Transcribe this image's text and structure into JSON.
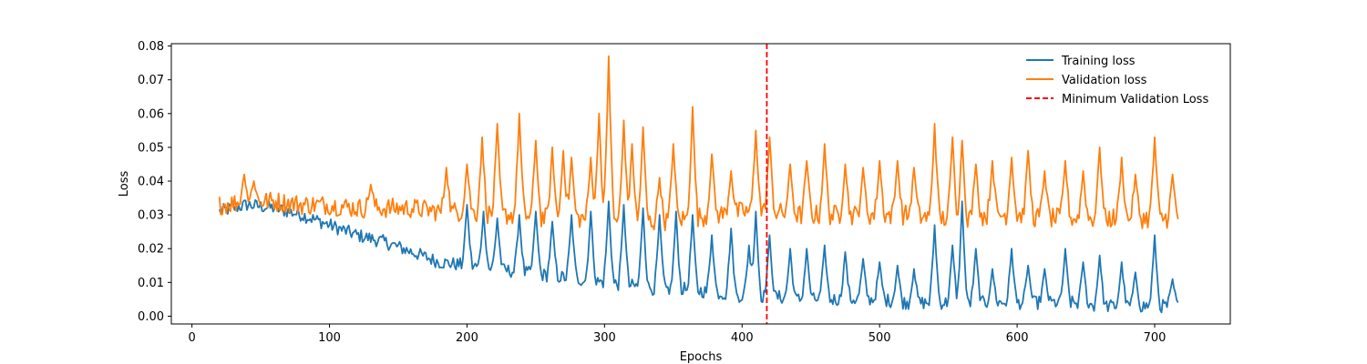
{
  "chart_data": {
    "type": "line",
    "title": "",
    "xlabel": "Epochs",
    "ylabel": "Loss",
    "xlim": [
      -15,
      755
    ],
    "ylim": [
      -0.0023,
      0.0807
    ],
    "xticks": [
      0,
      100,
      200,
      300,
      400,
      500,
      600,
      700
    ],
    "xtick_labels": [
      "0",
      "100",
      "200",
      "300",
      "400",
      "500",
      "600",
      "700"
    ],
    "yticks": [
      0.0,
      0.01,
      0.02,
      0.03,
      0.04,
      0.05,
      0.06,
      0.07,
      0.08
    ],
    "ytick_labels": [
      "0.00",
      "0.01",
      "0.02",
      "0.03",
      "0.04",
      "0.05",
      "0.06",
      "0.07",
      "0.08"
    ],
    "grid": false,
    "legend_position": "top-right",
    "series": [
      {
        "name": "Training loss",
        "color": "#1f77b4",
        "x_start": 20,
        "x_step": 20,
        "y": [
          0.031,
          0.033,
          0.032,
          0.03,
          0.027,
          0.024,
          0.022,
          0.019,
          0.016,
          0.015,
          0.014,
          0.013,
          0.012,
          0.011,
          0.01,
          0.009,
          0.008,
          0.008,
          0.007,
          0.006,
          0.006,
          0.005,
          0.005,
          0.005,
          0.005,
          0.004,
          0.004,
          0.004,
          0.004,
          0.004,
          0.004,
          0.004,
          0.003,
          0.003,
          0.003,
          0.003
        ],
        "noise": 0.002,
        "spikes": [
          [
            200,
            0.033
          ],
          [
            212,
            0.031
          ],
          [
            222,
            0.029
          ],
          [
            238,
            0.03
          ],
          [
            250,
            0.031
          ],
          [
            262,
            0.028
          ],
          [
            276,
            0.03
          ],
          [
            290,
            0.031
          ],
          [
            303,
            0.034
          ],
          [
            314,
            0.033
          ],
          [
            328,
            0.032
          ],
          [
            340,
            0.03
          ],
          [
            352,
            0.031
          ],
          [
            364,
            0.03
          ],
          [
            378,
            0.024
          ],
          [
            392,
            0.026
          ],
          [
            405,
            0.021
          ],
          [
            410,
            0.031
          ],
          [
            420,
            0.024
          ],
          [
            435,
            0.02
          ],
          [
            447,
            0.02
          ],
          [
            460,
            0.021
          ],
          [
            475,
            0.019
          ],
          [
            488,
            0.017
          ],
          [
            500,
            0.016
          ],
          [
            513,
            0.015
          ],
          [
            525,
            0.014
          ],
          [
            540,
            0.027
          ],
          [
            553,
            0.021
          ],
          [
            560,
            0.034
          ],
          [
            570,
            0.02
          ],
          [
            582,
            0.014
          ],
          [
            596,
            0.02
          ],
          [
            608,
            0.015
          ],
          [
            620,
            0.014
          ],
          [
            635,
            0.02
          ],
          [
            648,
            0.016
          ],
          [
            660,
            0.018
          ],
          [
            676,
            0.016
          ],
          [
            686,
            0.013
          ],
          [
            700,
            0.024
          ],
          [
            713,
            0.011
          ]
        ]
      },
      {
        "name": "Validation loss",
        "color": "#ff7f0e",
        "x_start": 20,
        "x_step": 20,
        "y": [
          0.033,
          0.034,
          0.034,
          0.033,
          0.033,
          0.032,
          0.032,
          0.032,
          0.031,
          0.031,
          0.03,
          0.03,
          0.029,
          0.029,
          0.029,
          0.028,
          0.028,
          0.029,
          0.03,
          0.031,
          0.031,
          0.03,
          0.03,
          0.03,
          0.03,
          0.03,
          0.029,
          0.029,
          0.03,
          0.03,
          0.029,
          0.029,
          0.029,
          0.029,
          0.029,
          0.029
        ],
        "noise": 0.003,
        "spikes": [
          [
            38,
            0.042
          ],
          [
            45,
            0.04
          ],
          [
            130,
            0.039
          ],
          [
            185,
            0.044
          ],
          [
            200,
            0.045
          ],
          [
            211,
            0.053
          ],
          [
            222,
            0.057
          ],
          [
            238,
            0.06
          ],
          [
            250,
            0.052
          ],
          [
            262,
            0.05
          ],
          [
            270,
            0.049
          ],
          [
            276,
            0.047
          ],
          [
            290,
            0.047
          ],
          [
            296,
            0.06
          ],
          [
            303,
            0.077
          ],
          [
            314,
            0.058
          ],
          [
            320,
            0.051
          ],
          [
            328,
            0.056
          ],
          [
            340,
            0.041
          ],
          [
            350,
            0.051
          ],
          [
            364,
            0.062
          ],
          [
            378,
            0.048
          ],
          [
            392,
            0.043
          ],
          [
            410,
            0.055
          ],
          [
            420,
            0.053
          ],
          [
            435,
            0.045
          ],
          [
            447,
            0.046
          ],
          [
            460,
            0.051
          ],
          [
            475,
            0.045
          ],
          [
            488,
            0.044
          ],
          [
            500,
            0.046
          ],
          [
            513,
            0.046
          ],
          [
            525,
            0.044
          ],
          [
            540,
            0.057
          ],
          [
            553,
            0.053
          ],
          [
            560,
            0.052
          ],
          [
            570,
            0.045
          ],
          [
            582,
            0.046
          ],
          [
            596,
            0.047
          ],
          [
            608,
            0.049
          ],
          [
            620,
            0.043
          ],
          [
            635,
            0.046
          ],
          [
            648,
            0.043
          ],
          [
            660,
            0.05
          ],
          [
            676,
            0.047
          ],
          [
            686,
            0.042
          ],
          [
            700,
            0.053
          ],
          [
            713,
            0.042
          ]
        ]
      }
    ],
    "vline": {
      "name": "Minimum Validation Loss",
      "x": 418,
      "color": "#ff0000",
      "style": "dashed"
    }
  }
}
